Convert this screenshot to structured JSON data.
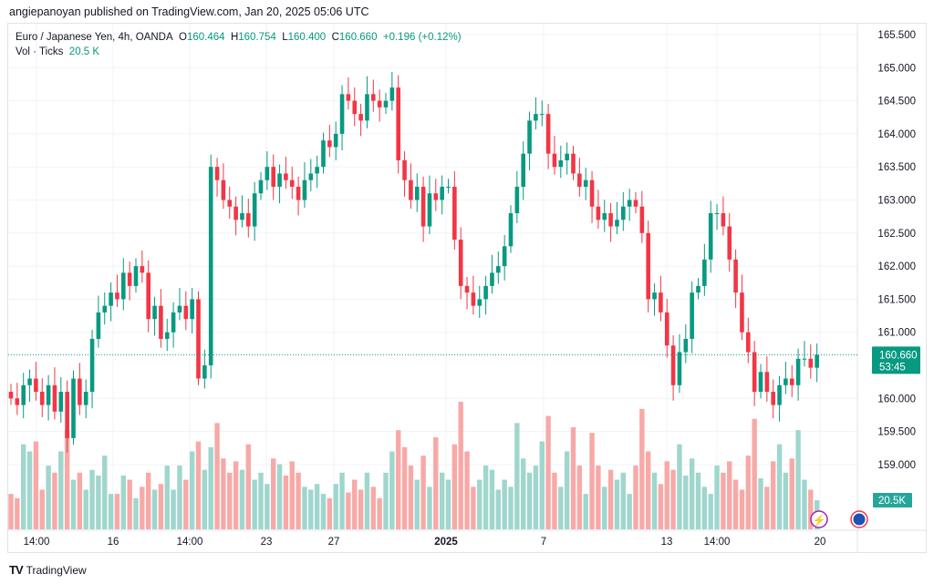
{
  "header": {
    "published": "angiepanoyan published on TradingView.com, Jan 20, 2025 05:06 UTC"
  },
  "legend": {
    "symbol": "Euro / Japanese Yen, 4h, OANDA",
    "o_label": "O",
    "o": "160.464",
    "h_label": "H",
    "h": "160.754",
    "l_label": "L",
    "l": "160.400",
    "c_label": "C",
    "c": "160.660",
    "change": "+0.196 (+0.12%)",
    "vol_label": "Vol · Ticks",
    "vol": "20.5 K"
  },
  "price_badge": {
    "price": "160.660",
    "countdown": "53:45"
  },
  "volume_badge": "20.5K",
  "footer": {
    "brand": "TradingView"
  },
  "colors": {
    "up": "#089981",
    "down": "#f23645",
    "up_vol": "#9fd6cd",
    "down_vol": "#f7a9a7"
  },
  "chart_data": {
    "type": "candlestick",
    "title": "Euro / Japanese Yen, 4h, OANDA",
    "ylim": [
      159.0,
      165.5
    ],
    "y_ticks": [
      "165.500",
      "165.000",
      "164.500",
      "164.000",
      "163.500",
      "163.000",
      "162.500",
      "162.000",
      "161.500",
      "161.000",
      "160.000",
      "159.500",
      "159.000"
    ],
    "x_ticks": [
      "14:00",
      "16",
      "14:00",
      "23",
      "27",
      "2025",
      "7",
      "13",
      "14:00",
      "20"
    ],
    "first_open": 160.1,
    "closes": [
      160.0,
      159.9,
      160.2,
      160.3,
      160.1,
      159.9,
      160.2,
      159.8,
      160.1,
      159.4,
      160.3,
      159.9,
      160.1,
      160.9,
      161.3,
      161.4,
      161.6,
      161.5,
      161.9,
      161.7,
      162.0,
      161.9,
      161.2,
      161.4,
      160.9,
      161.0,
      161.3,
      161.4,
      161.2,
      161.5,
      160.3,
      160.5,
      163.5,
      163.3,
      163.0,
      162.9,
      162.7,
      162.8,
      162.6,
      163.1,
      163.3,
      163.5,
      163.2,
      163.4,
      163.3,
      163.2,
      163.0,
      163.3,
      163.4,
      163.5,
      163.9,
      163.8,
      164.0,
      164.6,
      164.5,
      164.3,
      164.2,
      164.6,
      164.5,
      164.4,
      164.5,
      164.7,
      163.6,
      163.3,
      163.0,
      163.2,
      162.6,
      163.1,
      163.0,
      163.2,
      163.2,
      162.4,
      161.7,
      161.6,
      161.4,
      161.5,
      161.7,
      161.9,
      162.0,
      162.3,
      162.8,
      163.2,
      163.7,
      164.2,
      164.3,
      164.3,
      163.7,
      163.5,
      163.6,
      163.7,
      163.4,
      163.2,
      163.3,
      162.9,
      162.7,
      162.8,
      162.6,
      162.7,
      162.9,
      163.0,
      162.9,
      162.5,
      161.5,
      161.6,
      161.3,
      160.8,
      160.2,
      160.7,
      160.9,
      161.6,
      161.7,
      162.1,
      162.8,
      162.8,
      162.6,
      162.1,
      161.6,
      161.0,
      160.7,
      160.1,
      160.4,
      160.1,
      159.9,
      160.2,
      160.3,
      160.2,
      160.6,
      160.6,
      160.464,
      160.66
    ],
    "volumes_k": [
      25,
      22,
      60,
      55,
      62,
      28,
      45,
      40,
      55,
      70,
      35,
      40,
      28,
      42,
      38,
      52,
      25,
      25,
      38,
      35,
      22,
      30,
      40,
      28,
      32,
      45,
      28,
      45,
      35,
      55,
      62,
      42,
      58,
      75,
      50,
      40,
      48,
      42,
      60,
      35,
      40,
      32,
      50,
      46,
      38,
      48,
      40,
      30,
      28,
      32,
      25,
      22,
      32,
      40,
      26,
      35,
      28,
      40,
      30,
      22,
      40,
      55,
      70,
      58,
      45,
      35,
      52,
      30,
      65,
      40,
      35,
      60,
      90,
      55,
      30,
      35,
      45,
      42,
      28,
      35,
      30,
      75,
      50,
      40,
      45,
      62,
      80,
      40,
      30,
      55,
      72,
      45,
      25,
      68,
      45,
      30,
      42,
      35,
      40,
      25,
      45,
      85,
      55,
      40,
      32,
      48,
      42,
      60,
      38,
      50,
      40,
      30,
      25,
      45,
      40,
      48,
      35,
      28,
      52,
      78,
      36,
      30,
      48,
      60,
      40,
      50,
      70,
      35,
      28,
      20.5
    ]
  }
}
